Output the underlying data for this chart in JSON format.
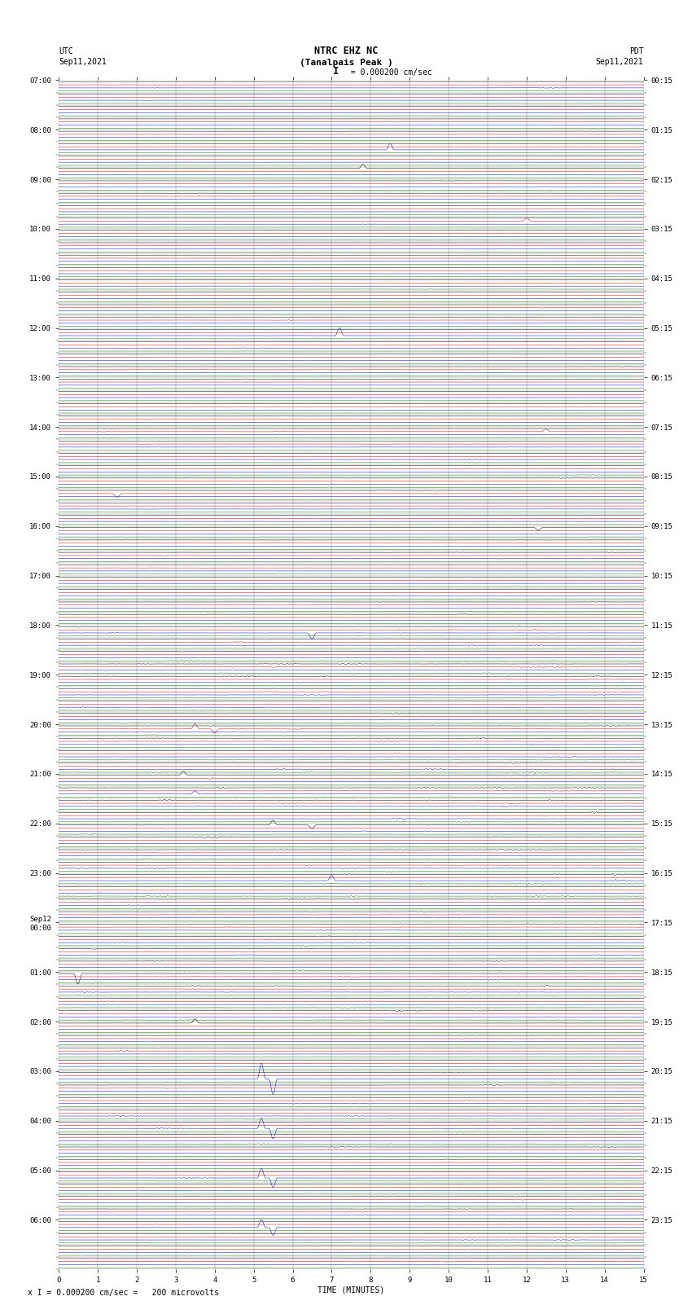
{
  "title_line1": "NTRC EHZ NC",
  "title_line2": "(Tanalpais Peak )",
  "scale_label": "I = 0.000200 cm/sec",
  "footer_label": "x I = 0.000200 cm/sec =   200 microvolts",
  "xlabel": "TIME (MINUTES)",
  "bg_color": "#ffffff",
  "trace_colors": [
    "#000000",
    "#cc0000",
    "#0000cc",
    "#007700"
  ],
  "left_times": [
    "07:00",
    "",
    "",
    "",
    "08:00",
    "",
    "",
    "",
    "09:00",
    "",
    "",
    "",
    "10:00",
    "",
    "",
    "",
    "11:00",
    "",
    "",
    "",
    "12:00",
    "",
    "",
    "",
    "13:00",
    "",
    "",
    "",
    "14:00",
    "",
    "",
    "",
    "15:00",
    "",
    "",
    "",
    "16:00",
    "",
    "",
    "",
    "17:00",
    "",
    "",
    "",
    "18:00",
    "",
    "",
    "",
    "19:00",
    "",
    "",
    "",
    "20:00",
    "",
    "",
    "",
    "21:00",
    "",
    "",
    "",
    "22:00",
    "",
    "",
    "",
    "23:00",
    "",
    "",
    "",
    "Sep12\n00:00",
    "",
    "",
    "",
    "01:00",
    "",
    "",
    "",
    "02:00",
    "",
    "",
    "",
    "03:00",
    "",
    "",
    "",
    "04:00",
    "",
    "",
    "",
    "05:00",
    "",
    "",
    "",
    "06:00",
    "",
    "",
    ""
  ],
  "right_times": [
    "00:15",
    "",
    "",
    "",
    "01:15",
    "",
    "",
    "",
    "02:15",
    "",
    "",
    "",
    "03:15",
    "",
    "",
    "",
    "04:15",
    "",
    "",
    "",
    "05:15",
    "",
    "",
    "",
    "06:15",
    "",
    "",
    "",
    "07:15",
    "",
    "",
    "",
    "08:15",
    "",
    "",
    "",
    "09:15",
    "",
    "",
    "",
    "10:15",
    "",
    "",
    "",
    "11:15",
    "",
    "",
    "",
    "12:15",
    "",
    "",
    "",
    "13:15",
    "",
    "",
    "",
    "14:15",
    "",
    "",
    "",
    "15:15",
    "",
    "",
    "",
    "16:15",
    "",
    "",
    "",
    "17:15",
    "",
    "",
    "",
    "18:15",
    "",
    "",
    "",
    "19:15",
    "",
    "",
    "",
    "20:15",
    "",
    "",
    "",
    "21:15",
    "",
    "",
    "",
    "22:15",
    "",
    "",
    "",
    "23:15",
    "",
    "",
    ""
  ],
  "num_rows": 96,
  "traces_per_row": 4,
  "xmin": 0,
  "xmax": 15,
  "fig_width": 8.5,
  "fig_height": 16.13,
  "dpi": 100,
  "grid_color": "#888888",
  "grid_linewidth": 0.3,
  "trace_linewidth": 0.35,
  "label_fontsize": 7.0,
  "title_fontsize": 8.5,
  "tick_fontsize": 6.5
}
